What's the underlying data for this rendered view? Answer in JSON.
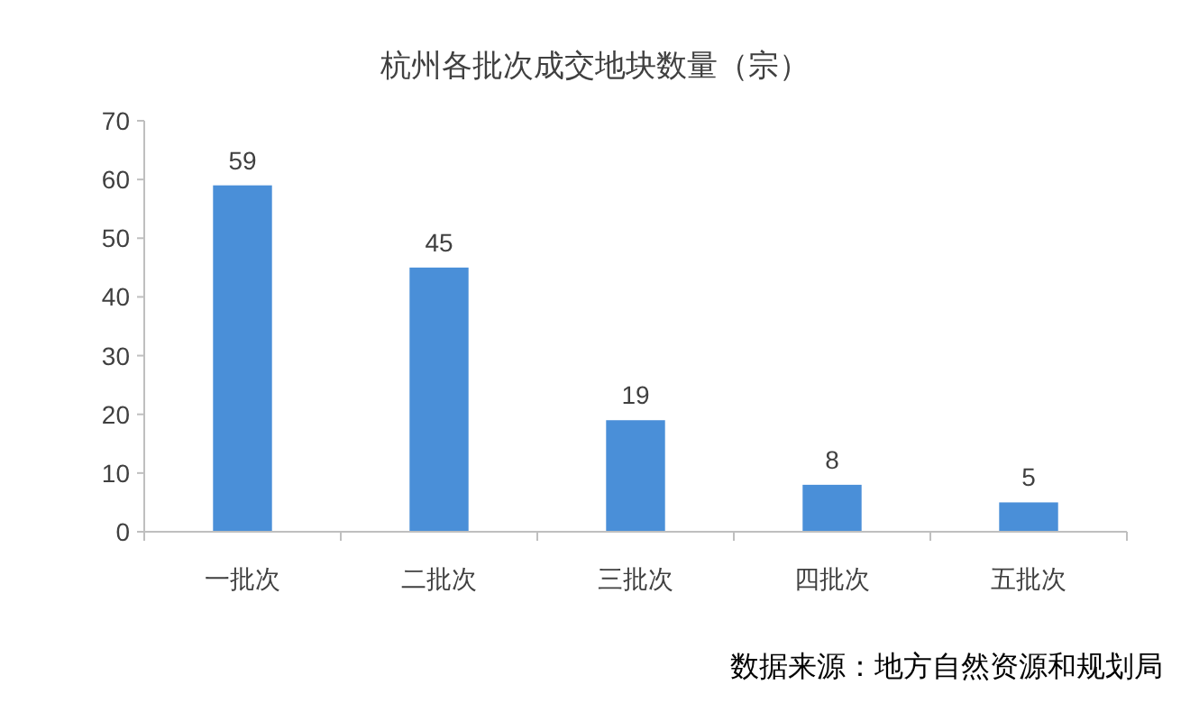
{
  "chart_data": {
    "type": "bar",
    "title": "杭州各批次成交地块数量（宗）",
    "categories": [
      "一批次",
      "二批次",
      "三批次",
      "四批次",
      "五批次"
    ],
    "values": [
      59,
      45,
      19,
      8,
      5
    ],
    "color": "#4a8fd8",
    "ylim": [
      0,
      70
    ],
    "yticks": [
      0,
      10,
      20,
      30,
      40,
      50,
      60,
      70
    ],
    "data_labels": true,
    "annotations": [
      "数据来源：地方自然资源和规划局"
    ]
  }
}
